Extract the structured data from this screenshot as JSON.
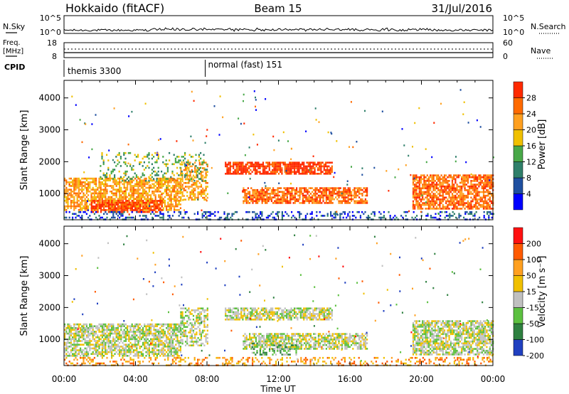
{
  "header": {
    "title_left": "Hokkaido (fitACF)",
    "title_center": "Beam 15",
    "title_right": "31/Jul/2016"
  },
  "strips": {
    "nsky_label": "N.Sky",
    "nsky_ticks": [
      "10^5",
      "10^0"
    ],
    "nsearch_label": "N.Search",
    "nsearch_ticks": [
      "10^5",
      "10^0"
    ],
    "freq_label": "Freq.",
    "freq_unit": "[MHz]",
    "freq_ticks": [
      "18",
      "8"
    ],
    "nave_label": "Nave",
    "nave_ticks": [
      "60",
      "0"
    ],
    "cpid_label": "CPID",
    "cpid_segments": [
      {
        "label": "themis 3300",
        "start_hour": 0
      },
      {
        "label": "normal (fast) 151",
        "start_hour": 7.9
      }
    ]
  },
  "xaxis": {
    "label": "Time UT",
    "ticks": [
      "00:00",
      "04:00",
      "08:00",
      "12:00",
      "16:00",
      "20:00",
      "00:00"
    ]
  },
  "chart_data": [
    {
      "type": "heatmap",
      "name": "power",
      "ylabel": "Slant Range [km]",
      "xlim": [
        0,
        24
      ],
      "ylim": [
        180,
        4550
      ],
      "yticks": [
        1000,
        2000,
        3000,
        4000
      ],
      "colorbar": {
        "label": "Power [dB]",
        "ticks": [
          "4",
          "8",
          "12",
          "16",
          "20",
          "24",
          "28"
        ],
        "colors": [
          "#0000ff",
          "#1f4fa0",
          "#2f7f6a",
          "#48a848",
          "#f0c000",
          "#ffa020",
          "#ff6a00",
          "#ff2a00"
        ]
      },
      "regions": [
        {
          "x": [
            0.0,
            6.5
          ],
          "y": [
            500,
            1500
          ],
          "level": 5,
          "d": 0.7
        },
        {
          "x": [
            1.5,
            5.5
          ],
          "y": [
            400,
            800
          ],
          "level": 7,
          "d": 0.65
        },
        {
          "x": [
            6.5,
            8.0
          ],
          "y": [
            800,
            2000
          ],
          "level": 5,
          "d": 0.5
        },
        {
          "x": [
            9.0,
            15.0
          ],
          "y": [
            1600,
            2000
          ],
          "level": 7,
          "d": 0.8
        },
        {
          "x": [
            10.0,
            17.0
          ],
          "y": [
            700,
            1200
          ],
          "level": 6,
          "d": 0.75
        },
        {
          "x": [
            19.5,
            24.0
          ],
          "y": [
            500,
            1600
          ],
          "level": 6,
          "d": 0.75
        },
        {
          "x": [
            0.0,
            24.0
          ],
          "y": [
            180,
            450
          ],
          "level": 1,
          "d": 0.3
        },
        {
          "x": [
            2.0,
            8.0
          ],
          "y": [
            1400,
            2300
          ],
          "level": 3,
          "d": 0.2
        }
      ]
    },
    {
      "type": "heatmap",
      "name": "velocity",
      "ylabel": "Slant Range [km]",
      "xlim": [
        0,
        24
      ],
      "ylim": [
        180,
        4550
      ],
      "yticks": [
        1000,
        2000,
        3000,
        4000
      ],
      "colorbar": {
        "label": "Velocity [m s⁻¹]",
        "ticks": [
          "200",
          "100",
          "50",
          "15",
          "-15",
          "-50",
          "-100",
          "-200"
        ],
        "colors": [
          "#2040c0",
          "#2e8040",
          "#5cc040",
          "#c0c0c0",
          "#f0c000",
          "#ffa020",
          "#ff5a00",
          "#ff1010"
        ]
      },
      "regions": [
        {
          "x": [
            0.0,
            6.5
          ],
          "y": [
            500,
            1500
          ],
          "level": 3,
          "d": 0.7
        },
        {
          "x": [
            6.5,
            8.0
          ],
          "y": [
            800,
            2000
          ],
          "level": 3,
          "d": 0.5
        },
        {
          "x": [
            9.0,
            15.0
          ],
          "y": [
            1600,
            2000
          ],
          "level": 3,
          "d": 0.75
        },
        {
          "x": [
            10.0,
            17.0
          ],
          "y": [
            700,
            1200
          ],
          "level": 3,
          "d": 0.7
        },
        {
          "x": [
            10.5,
            13.0
          ],
          "y": [
            500,
            900
          ],
          "level": 2,
          "d": 0.45
        },
        {
          "x": [
            19.5,
            24.0
          ],
          "y": [
            500,
            1600
          ],
          "level": 3,
          "d": 0.75
        },
        {
          "x": [
            0.0,
            24.0
          ],
          "y": [
            180,
            450
          ],
          "level": 5,
          "d": 0.3
        }
      ]
    }
  ]
}
